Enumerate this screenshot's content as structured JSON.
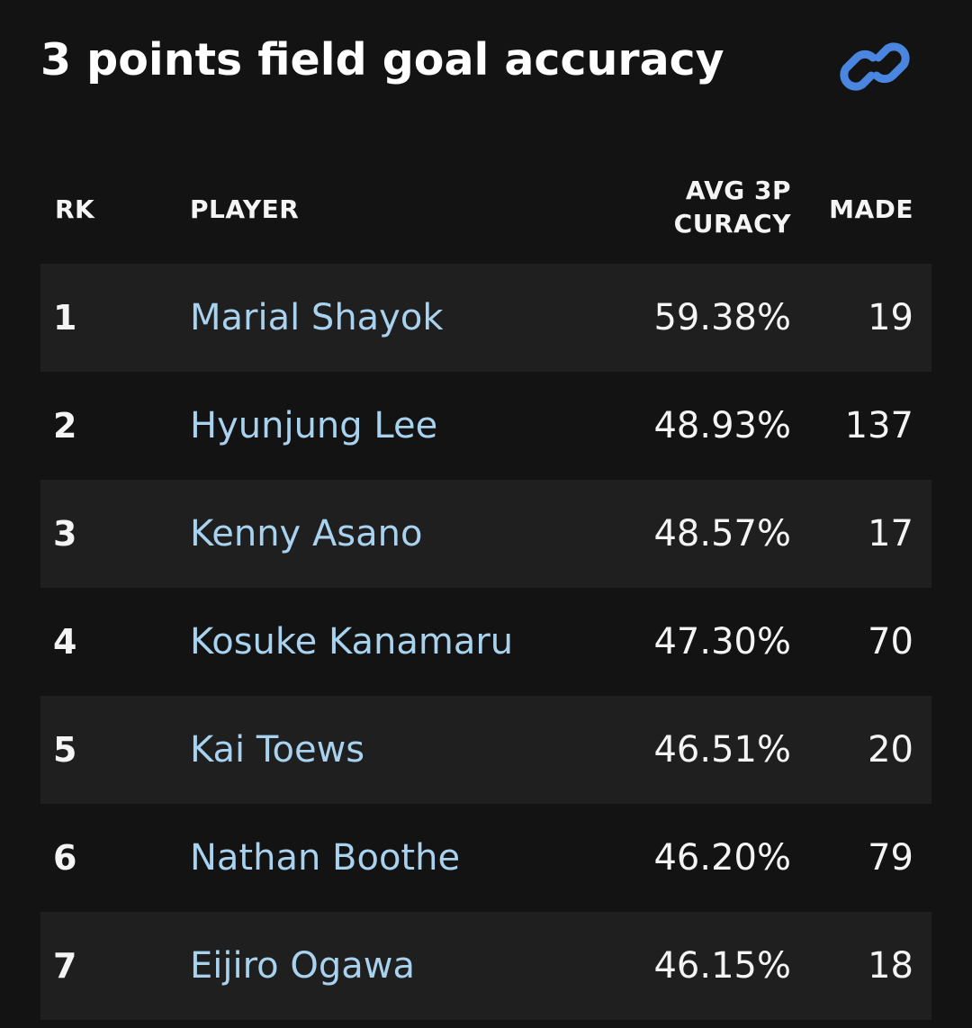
{
  "title": "3 points field goal accuracy",
  "icons": {
    "link": "link-icon"
  },
  "colors": {
    "background": "#131314",
    "row_alt": "#1f1f20",
    "player_link": "#a8d2ee",
    "accent_icon": "#4a86e0"
  },
  "table": {
    "headers": {
      "rank": "RK",
      "player": "PLAYER",
      "avg_line1": "AVG 3P",
      "avg_line2": "CURACY",
      "made": "MADE"
    },
    "rows": [
      {
        "rank": "1",
        "player": "Marial Shayok",
        "avg": "59.38%",
        "made": "19"
      },
      {
        "rank": "2",
        "player": "Hyunjung Lee",
        "avg": "48.93%",
        "made": "137"
      },
      {
        "rank": "3",
        "player": "Kenny Asano",
        "avg": "48.57%",
        "made": "17"
      },
      {
        "rank": "4",
        "player": "Kosuke Kanamaru",
        "avg": "47.30%",
        "made": "70"
      },
      {
        "rank": "5",
        "player": "Kai Toews",
        "avg": "46.51%",
        "made": "20"
      },
      {
        "rank": "6",
        "player": "Nathan Boothe",
        "avg": "46.20%",
        "made": "79"
      },
      {
        "rank": "7",
        "player": "Eijiro Ogawa",
        "avg": "46.15%",
        "made": "18"
      }
    ]
  }
}
